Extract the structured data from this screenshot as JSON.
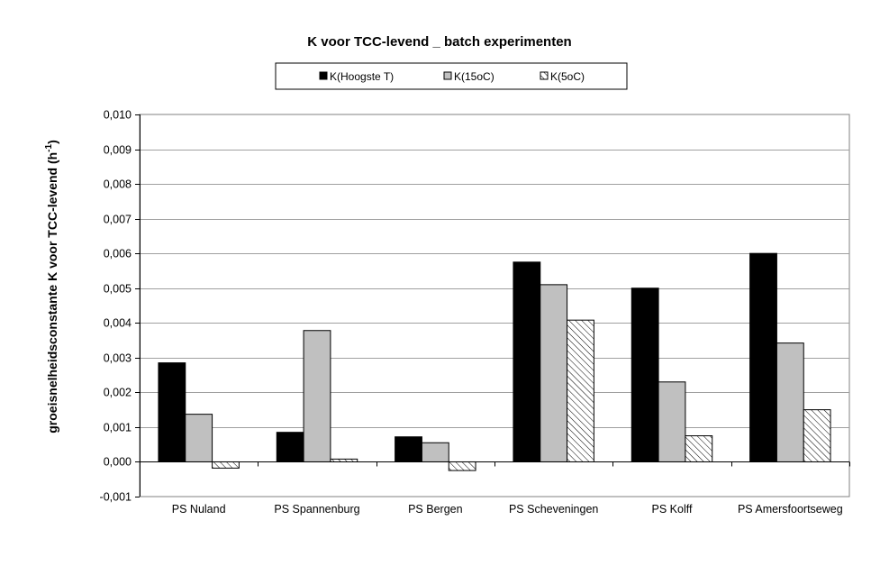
{
  "chart_data": {
    "type": "bar",
    "title": "K voor TCC-levend _ batch experimenten",
    "ylabel": "groeisnelheidsconstante K voor TCC-levend (h",
    "ylabel_sup": "-1",
    "ylabel_end": ")",
    "xlabel": "",
    "ylim": [
      -0.001,
      0.01
    ],
    "yticks": [
      "-0,001",
      "0,000",
      "0,001",
      "0,002",
      "0,003",
      "0,004",
      "0,005",
      "0,006",
      "0,007",
      "0,008",
      "0,009",
      "0,010"
    ],
    "grid": true,
    "legend_position": "top",
    "categories": [
      "PS Nuland",
      "PS Spannenburg",
      "PS Bergen",
      "PS Scheveningen",
      "PS Kolff",
      "PS Amersfoortseweg"
    ],
    "series": [
      {
        "name": "K(Hoogste T)",
        "fill": "solid",
        "color": "#000000",
        "values": [
          0.00285,
          0.00085,
          0.00072,
          0.00575,
          0.005,
          0.006
        ]
      },
      {
        "name": "K(15oC)",
        "fill": "solid",
        "color": "#c0c0c0",
        "values": [
          0.00137,
          0.00378,
          0.00055,
          0.0051,
          0.0023,
          0.00342
        ]
      },
      {
        "name": "K(5oC)",
        "fill": "hatch",
        "color": "#ffffff",
        "values": [
          -0.00018,
          8e-05,
          -0.00025,
          0.00408,
          0.00075,
          0.0015
        ]
      }
    ]
  }
}
